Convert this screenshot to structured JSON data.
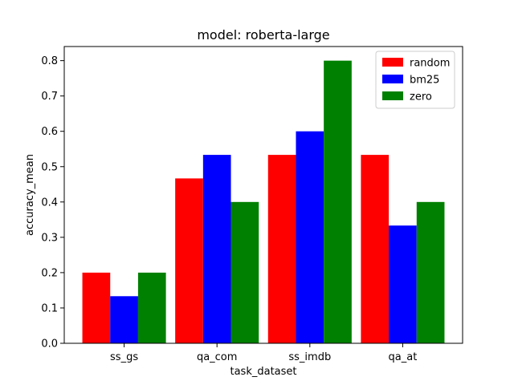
{
  "chart_data": {
    "type": "bar",
    "title": "model: roberta-large",
    "xlabel": "task_dataset",
    "ylabel": "accuracy_mean",
    "categories": [
      "ss_gs",
      "qa_com",
      "ss_imdb",
      "qa_at"
    ],
    "series": [
      {
        "name": "random",
        "color": "#ff0000",
        "values": [
          0.2,
          0.4667,
          0.5333,
          0.5333
        ]
      },
      {
        "name": "bm25",
        "color": "#0000ff",
        "values": [
          0.1333,
          0.5333,
          0.6,
          0.3333
        ]
      },
      {
        "name": "zero",
        "color": "#008000",
        "values": [
          0.2,
          0.4,
          0.8,
          0.4
        ]
      }
    ],
    "ylim": [
      0,
      0.84
    ],
    "yticks": [
      0.0,
      0.1,
      0.2,
      0.3,
      0.4,
      0.5,
      0.6,
      0.7,
      0.8
    ],
    "ytick_labels": [
      "0.0",
      "0.1",
      "0.2",
      "0.3",
      "0.4",
      "0.5",
      "0.6",
      "0.7",
      "0.8"
    ],
    "grid": false,
    "legend_position": "top-right"
  }
}
